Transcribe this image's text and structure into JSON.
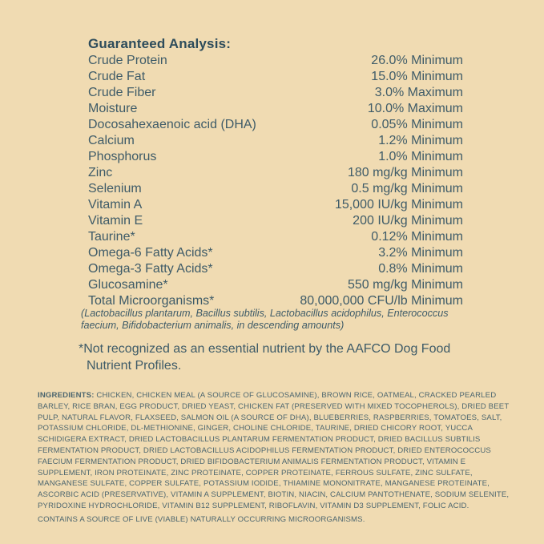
{
  "label": {
    "colors": {
      "background": "#f0dbb2",
      "heading_text": "#2d4c5b",
      "body_text": "#3e5b68",
      "ingredients_text": "#4c666f"
    },
    "heading": "Guaranteed Analysis:",
    "rows": [
      {
        "name": "Crude Protein",
        "value": "26.0% Minimum"
      },
      {
        "name": "Crude Fat",
        "value": "15.0% Minimum"
      },
      {
        "name": "Crude Fiber",
        "value": "3.0% Maximum"
      },
      {
        "name": "Moisture",
        "value": "10.0% Maximum"
      },
      {
        "name": "Docosahexaenoic acid (DHA)",
        "value": "0.05% Minimum"
      },
      {
        "name": "Calcium",
        "value": "1.2% Minimum"
      },
      {
        "name": "Phosphorus",
        "value": "1.0% Minimum"
      },
      {
        "name": "Zinc",
        "value": "180 mg/kg Minimum"
      },
      {
        "name": "Selenium",
        "value": "0.5 mg/kg Minimum"
      },
      {
        "name": "Vitamin A",
        "value": "15,000 IU/kg Minimum"
      },
      {
        "name": "Vitamin E",
        "value": "200 IU/kg Minimum"
      },
      {
        "name": "Taurine*",
        "value": "0.12% Minimum"
      },
      {
        "name": "Omega-6 Fatty Acids*",
        "value": "3.2% Minimum"
      },
      {
        "name": "Omega-3 Fatty Acids*",
        "value": "0.8% Minimum"
      },
      {
        "name": "Glucosamine*",
        "value": "550 mg/kg Minimum"
      },
      {
        "name": "Total Microorganisms*",
        "value": "80,000,000 CFU/lb Minimum"
      }
    ],
    "microorganisms_note": "(Lactobacillus plantarum, Bacillus subtilis, Lactobacillus acidophilus, Enterococcus faecium, Bifidobacterium animalis, in descending amounts)",
    "footnote": "*Not recognized as an essential nutrient by the AAFCO Dog Food Nutrient Profiles.",
    "ingredients_label": "INGREDIENTS:",
    "ingredients_text": " CHICKEN, CHICKEN MEAL (A SOURCE OF GLUCOSAMINE), BROWN RICE, OATMEAL, CRACKED PEARLED BARLEY, RICE BRAN, EGG PRODUCT, DRIED YEAST, CHICKEN FAT (PRESERVED WITH MIXED TOCOPHEROLS), DRIED BEET PULP, NATURAL FLAVOR, FLAXSEED, SALMON OIL (A SOURCE OF DHA), BLUEBERRIES, RASPBERRIES, TOMATOES, SALT, POTASSIUM CHLORIDE, DL-METHIONINE, GINGER, CHOLINE CHLORIDE, TAURINE, DRIED CHICORY ROOT, YUCCA SCHIDIGERA EXTRACT, DRIED LACTOBACILLUS PLANTARUM FERMENTATION PRODUCT, DRIED BACILLUS SUBTILIS FERMENTATION PRODUCT, DRIED LACTOBACILLUS ACIDOPHILUS FERMENTATION PRODUCT, DRIED ENTEROCOCCUS FAECIUM FERMENTATION PRODUCT, DRIED BIFIDOBACTERIUM ANIMALIS FERMENTATION PRODUCT, VITAMIN E SUPPLEMENT, IRON PROTEINATE, ZINC PROTEINATE, COPPER PROTEINATE, FERROUS SULFATE, ZINC SULFATE, MANGANESE SULFATE, COPPER SULFATE, POTASSIUM IODIDE, THIAMINE MONONITRATE, MANGANESE PROTEINATE, ASCORBIC ACID (PRESERVATIVE), VITAMIN A SUPPLEMENT, BIOTIN, NIACIN, CALCIUM PANTOTHENATE, SODIUM SELENITE, PYRIDOXINE HYDROCHLORIDE, VITAMIN B12 SUPPLEMENT, RIBOFLAVIN, VITAMIN D3 SUPPLEMENT, FOLIC ACID.",
    "contains_note": "CONTAINS A SOURCE OF LIVE (VIABLE) NATURALLY OCCURRING MICROORGANISMS."
  }
}
